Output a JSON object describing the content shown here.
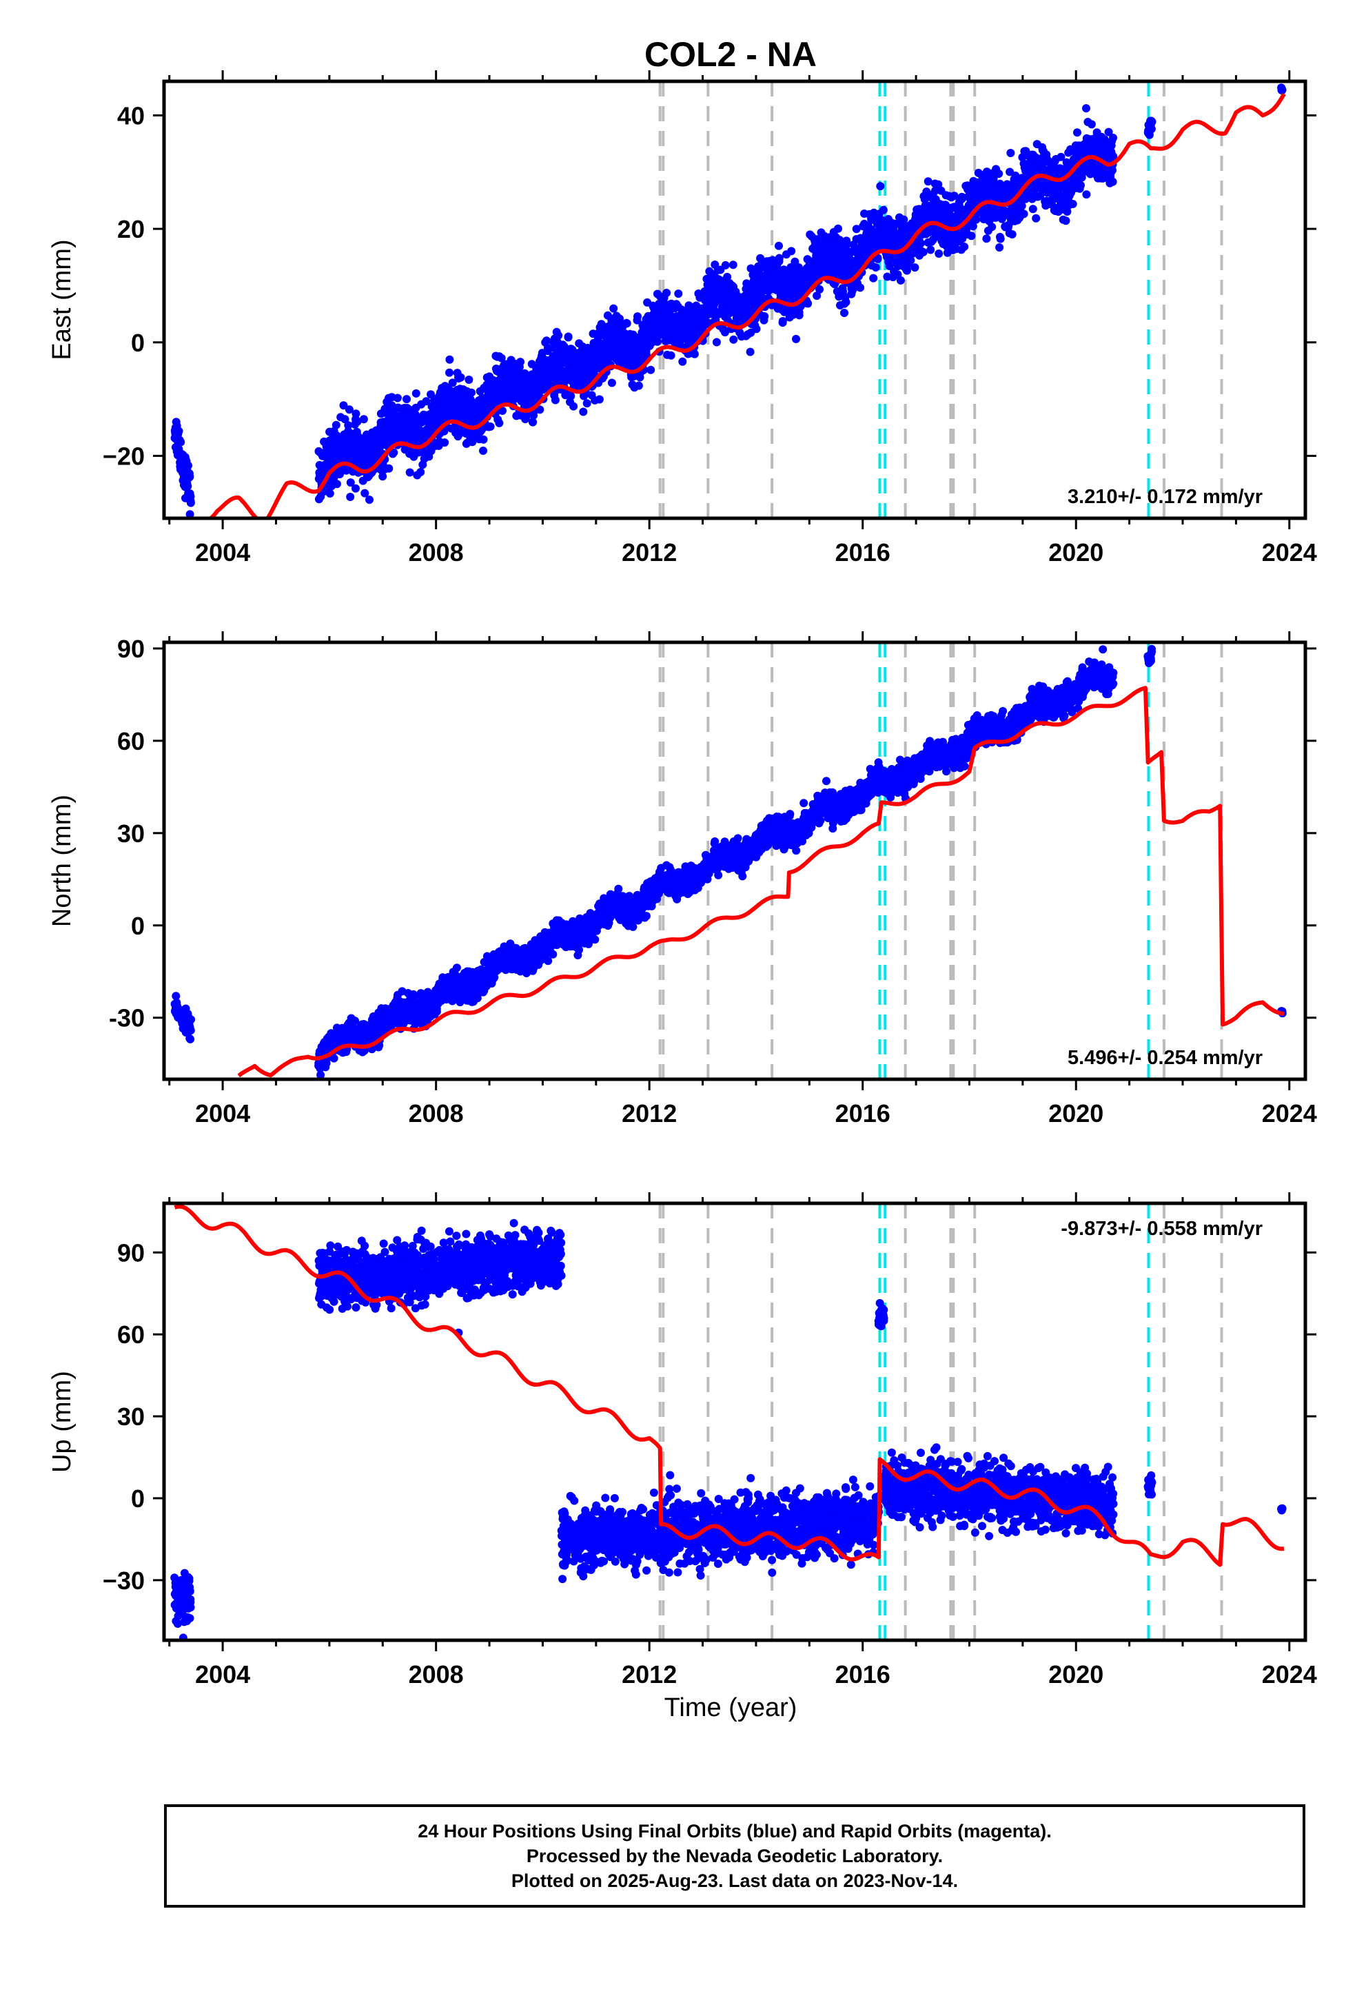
{
  "figure": {
    "title": "COL2 - NA",
    "xlabel": "Time (year)"
  },
  "colors": {
    "final_orbits": "#0000ff",
    "model": "#ff0000",
    "equipment_change": "#bbbbbb",
    "earthquake": "#00e5ee"
  },
  "chart_data": [
    {
      "type": "scatter",
      "panel": "east",
      "ylabel": "East (mm)",
      "xlim": [
        2002.9,
        2024.3
      ],
      "ylim": [
        -31,
        46
      ],
      "x_ticks": [
        2004,
        2008,
        2012,
        2016,
        2020,
        2024
      ],
      "y_ticks": [
        -20,
        0,
        20,
        40
      ],
      "y_tick_labels": [
        "−20",
        "0",
        "20",
        "40"
      ],
      "velocity_label": "3.210+/- 0.172 mm/yr",
      "velocity_label_position": "bottom-right",
      "data_segments": [
        {
          "x_start": 2003.1,
          "x_end": 2003.4,
          "y_start": -15,
          "y_end": -27,
          "scatter": 1.8
        },
        {
          "x_start": 2005.8,
          "x_end": 2020.7,
          "y_start": -22,
          "y_end": 33,
          "scatter": 2.5,
          "seasonal_amp": 2.0
        },
        {
          "x_start": 2021.35,
          "x_end": 2021.42,
          "y_start": 37,
          "y_end": 38.5,
          "scatter": 0.8
        },
        {
          "x_start": 2023.85,
          "x_end": 2023.87,
          "y_start": 44.5,
          "y_end": 44.5,
          "scatter": 0.2
        }
      ],
      "model_points": [
        [
          2003.6,
          -31
        ],
        [
          2003.9,
          -29
        ],
        [
          2004.3,
          -28.5
        ],
        [
          2004.6,
          -30
        ],
        [
          2004.8,
          -30.5
        ],
        [
          2005.2,
          -26
        ],
        [
          2005.8,
          -25
        ],
        [
          2006.0,
          -23
        ],
        [
          2006.6,
          -22
        ],
        [
          2008.0,
          -16
        ],
        [
          2010.0,
          -10
        ],
        [
          2012.0,
          -3
        ],
        [
          2012.3,
          -2
        ],
        [
          2013.0,
          1
        ],
        [
          2014.0,
          5
        ],
        [
          2015.0,
          9
        ],
        [
          2016.0,
          13
        ],
        [
          2017.0,
          19
        ],
        [
          2018.0,
          22
        ],
        [
          2019.0,
          27
        ],
        [
          2020.0,
          31
        ],
        [
          2020.6,
          32
        ],
        [
          2021.0,
          35
        ],
        [
          2021.4,
          33.5
        ],
        [
          2022.0,
          37.5
        ],
        [
          2022.8,
          38
        ],
        [
          2023.0,
          40.5
        ],
        [
          2023.5,
          40
        ],
        [
          2023.9,
          44.5
        ]
      ],
      "model_seasonal_amp": 1.2
    },
    {
      "type": "scatter",
      "panel": "north",
      "ylabel": "North (mm)",
      "xlim": [
        2002.9,
        2024.3
      ],
      "ylim": [
        -50,
        92
      ],
      "x_ticks": [
        2004,
        2008,
        2012,
        2016,
        2020,
        2024
      ],
      "y_ticks": [
        -30,
        0,
        30,
        60,
        90
      ],
      "y_tick_labels": [
        "-30",
        "0",
        "30",
        "60",
        "90"
      ],
      "velocity_label": "5.496+/- 0.254 mm/yr",
      "velocity_label_position": "bottom-right",
      "data_segments": [
        {
          "x_start": 2003.1,
          "x_end": 2003.4,
          "y_start": -26,
          "y_end": -34,
          "scatter": 1.5
        },
        {
          "x_start": 2005.8,
          "x_end": 2020.7,
          "y_start": -42,
          "y_end": 82,
          "scatter": 2.2,
          "seasonal_amp": 2.0
        },
        {
          "x_start": 2021.35,
          "x_end": 2021.42,
          "y_start": 85,
          "y_end": 88,
          "scatter": 1.0
        },
        {
          "x_start": 2023.85,
          "x_end": 2023.87,
          "y_start": -28,
          "y_end": -28,
          "scatter": 0.2
        }
      ],
      "model_points": [
        [
          2004.3,
          -50
        ],
        [
          2004.6,
          -45
        ],
        [
          2004.9,
          -48
        ],
        [
          2005.2,
          -46
        ],
        [
          2005.6,
          -42
        ],
        [
          2006.0,
          -42
        ],
        [
          2008.0,
          -31
        ],
        [
          2010.0,
          -20
        ],
        [
          2012.0,
          -7
        ],
        [
          2012.3,
          -6
        ],
        [
          2013.0,
          -1
        ],
        [
          2014.0,
          6
        ],
        [
          2014.6,
          10
        ],
        [
          2014.62,
          18
        ],
        [
          2016.0,
          30
        ],
        [
          2016.3,
          32
        ],
        [
          2016.35,
          39
        ],
        [
          2017.0,
          42
        ],
        [
          2018.0,
          50
        ],
        [
          2018.1,
          57
        ],
        [
          2019.0,
          63
        ],
        [
          2020.0,
          68
        ],
        [
          2020.6,
          72
        ],
        [
          2021.3,
          76
        ],
        [
          2021.35,
          52
        ],
        [
          2021.6,
          57
        ],
        [
          2021.65,
          35
        ],
        [
          2022.0,
          34
        ],
        [
          2022.5,
          37
        ],
        [
          2022.7,
          40
        ],
        [
          2022.75,
          -31
        ],
        [
          2023.0,
          -30
        ],
        [
          2023.5,
          -25
        ],
        [
          2023.9,
          -28
        ]
      ],
      "model_seasonal_amp": 1.2
    },
    {
      "type": "scatter",
      "panel": "up",
      "ylabel": "Up (mm)",
      "xlim": [
        2002.9,
        2024.3
      ],
      "ylim": [
        -52,
        108
      ],
      "x_ticks": [
        2004,
        2008,
        2012,
        2016,
        2020,
        2024
      ],
      "y_ticks": [
        -30,
        0,
        30,
        60,
        90
      ],
      "y_tick_labels": [
        "−30",
        "0",
        "30",
        "60",
        "90"
      ],
      "velocity_label": "-9.873+/- 0.558 mm/yr",
      "velocity_label_position": "top-right",
      "data_segments": [
        {
          "x_start": 2003.1,
          "x_end": 2003.4,
          "y_start": -36,
          "y_end": -38,
          "scatter": 5.0
        },
        {
          "x_start": 2005.8,
          "x_end": 2010.35,
          "y_start": 80,
          "y_end": 88,
          "scatter": 5.0
        },
        {
          "x_start": 2010.35,
          "x_end": 2016.3,
          "y_start": -15,
          "y_end": -8,
          "scatter": 5.5
        },
        {
          "x_start": 2016.3,
          "x_end": 2016.4,
          "y_start": 66,
          "y_end": 66,
          "scatter": 2.0
        },
        {
          "x_start": 2016.4,
          "x_end": 2020.7,
          "y_start": 4,
          "y_end": -2,
          "scatter": 5.0
        },
        {
          "x_start": 2021.35,
          "x_end": 2021.42,
          "y_start": 4,
          "y_end": 5,
          "scatter": 2.0
        },
        {
          "x_start": 2023.85,
          "x_end": 2023.87,
          "y_start": -4,
          "y_end": -4,
          "scatter": 0.2
        }
      ],
      "model_points": [
        [
          2003.1,
          105
        ],
        [
          2004.0,
          100
        ],
        [
          2005.0,
          90
        ],
        [
          2006.0,
          82
        ],
        [
          2007.0,
          73
        ],
        [
          2008.0,
          62
        ],
        [
          2009.0,
          53
        ],
        [
          2010.0,
          42
        ],
        [
          2011.0,
          32
        ],
        [
          2012.0,
          22
        ],
        [
          2012.2,
          16
        ],
        [
          2012.22,
          -12
        ],
        [
          2013.0,
          -12
        ],
        [
          2014.0,
          -15
        ],
        [
          2015.0,
          -16
        ],
        [
          2016.0,
          -21
        ],
        [
          2016.3,
          -24
        ],
        [
          2016.32,
          12
        ],
        [
          2017.0,
          8
        ],
        [
          2018.0,
          5
        ],
        [
          2019.0,
          2
        ],
        [
          2020.0,
          -4
        ],
        [
          2020.5,
          -8
        ],
        [
          2021.0,
          -16
        ],
        [
          2021.4,
          -22
        ],
        [
          2022.0,
          -16
        ],
        [
          2022.7,
          -22
        ],
        [
          2022.75,
          -7
        ],
        [
          2023.2,
          -10
        ],
        [
          2023.9,
          -17
        ]
      ],
      "model_seasonal_amp": 2.5
    }
  ],
  "event_lines": {
    "equipment_changes": [
      2012.2,
      2012.26,
      2013.1,
      2014.3,
      2016.8,
      2017.65,
      2017.7,
      2018.1,
      2021.65,
      2022.73
    ],
    "earthquakes": [
      2016.32,
      2016.42,
      2021.36
    ]
  },
  "caption": {
    "line1": "24 Hour Positions Using Final Orbits (blue) and Rapid Orbits (magenta).",
    "line2": "Processed by the Nevada Geodetic Laboratory.",
    "line3": "Plotted on 2025-Aug-23. Last data on 2023-Nov-14."
  }
}
